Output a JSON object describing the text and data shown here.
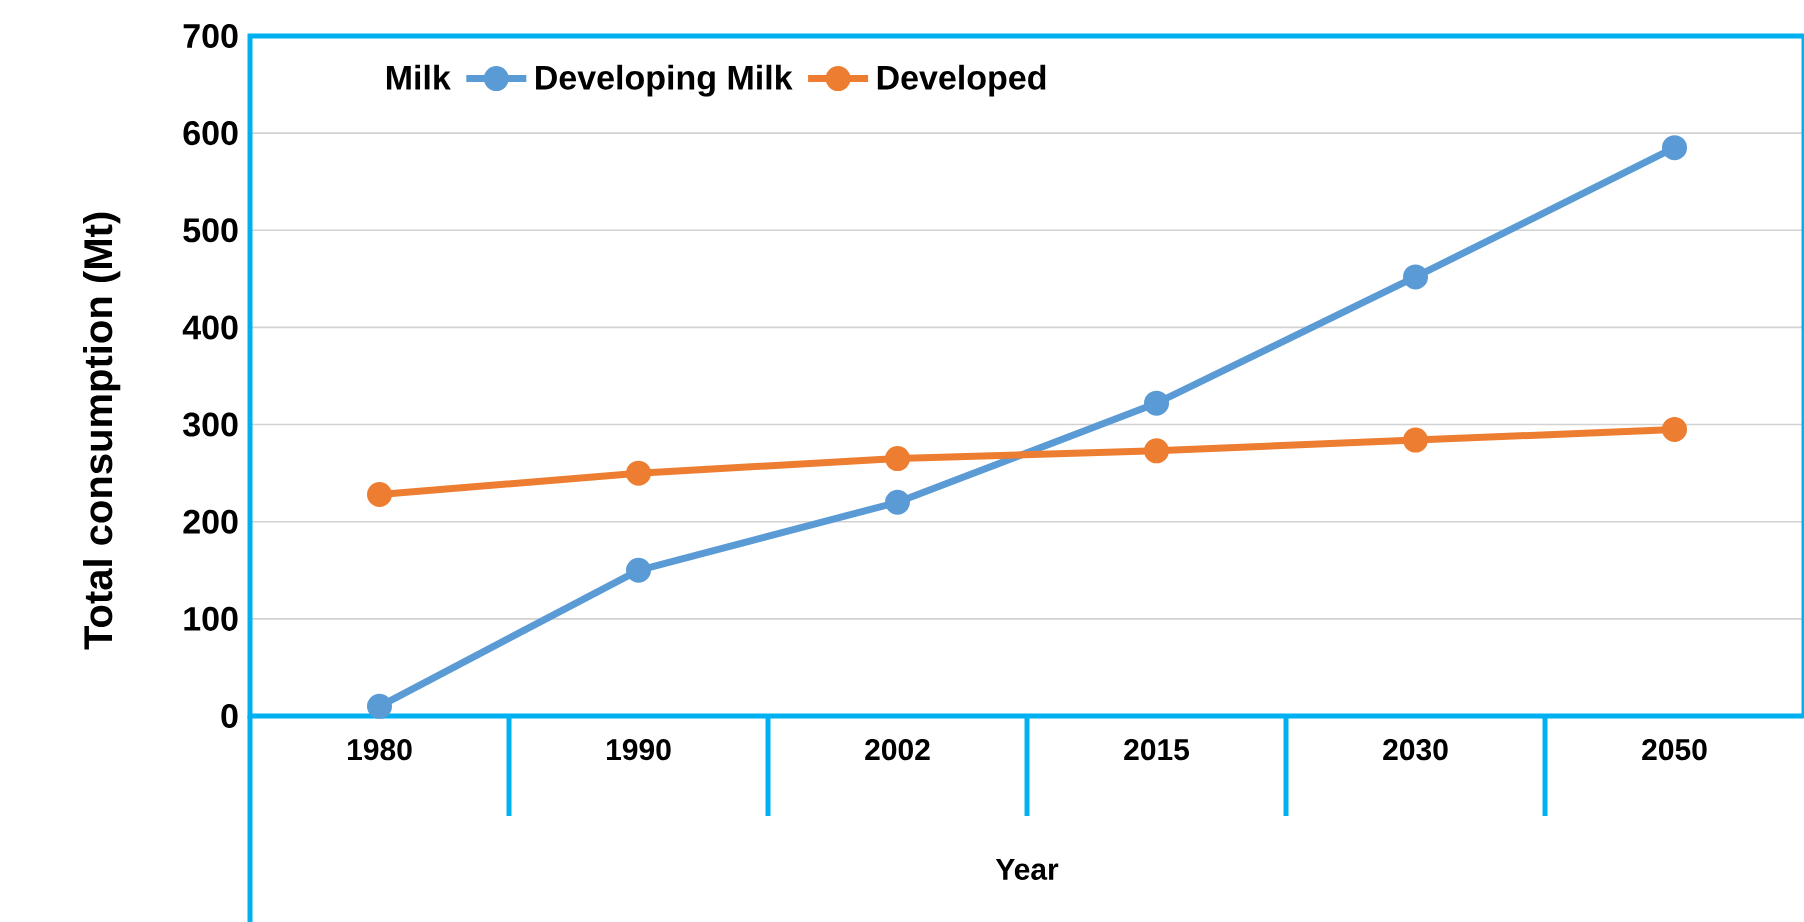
{
  "chart_data": {
    "type": "line",
    "xlabel": "Year",
    "ylabel": "Total consumption (Mt)",
    "legend_title": "Milk",
    "categories": [
      "1980",
      "1990",
      "2002",
      "2015",
      "2030",
      "2050"
    ],
    "series": [
      {
        "name": "Developing Milk",
        "color": "#5b9bd5",
        "values": [
          10,
          150,
          220,
          322,
          452,
          585
        ]
      },
      {
        "name": "Developed",
        "color": "#ed7d31",
        "values": [
          228,
          250,
          265,
          273,
          284,
          295
        ]
      }
    ],
    "ylim": [
      0,
      700
    ],
    "yticks": [
      0,
      100,
      200,
      300,
      400,
      500,
      600,
      700
    ],
    "grid": "y",
    "legend": "top",
    "marker": "circle",
    "line_style": "solid"
  }
}
